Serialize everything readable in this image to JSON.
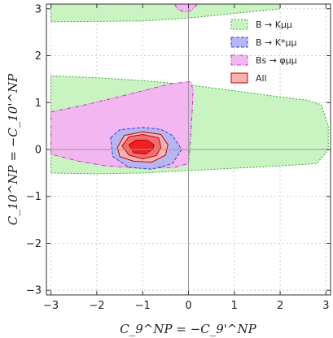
{
  "chart_data": {
    "type": "contour",
    "xlabel": "C_9^NP = −C_9'^NP",
    "ylabel": "C_10^NP = −C_10'^NP",
    "xlim": [
      -3.1,
      3.1
    ],
    "ylim": [
      -3.1,
      3.1
    ],
    "x_ticks": [
      -3,
      -2,
      -1,
      0,
      1,
      2,
      3
    ],
    "y_ticks": [
      -3,
      -2,
      -1,
      0,
      1,
      2,
      3
    ],
    "x_tick_labels": [
      "−3",
      "−2",
      "−1",
      "0",
      "1",
      "2",
      "3"
    ],
    "y_tick_labels": [
      "−3",
      "−2",
      "−1",
      "0",
      "1",
      "2",
      "3"
    ],
    "grid": true,
    "legend_position": "top-right",
    "legend": [
      {
        "key": "bk",
        "label": "B → Kμμ"
      },
      {
        "key": "bkstar",
        "label": "B → K*μμ"
      },
      {
        "key": "bsphi",
        "label": "Bs → φμμ"
      },
      {
        "key": "all",
        "label": "All"
      }
    ],
    "regions": {
      "bk_band_lower": [
        [
          -3.0,
          -0.5
        ],
        [
          -2.0,
          -0.52
        ],
        [
          -1.0,
          -0.5
        ],
        [
          0.0,
          -0.45
        ],
        [
          1.0,
          -0.4
        ],
        [
          2.0,
          -0.35
        ],
        [
          2.8,
          -0.3
        ],
        [
          3.05,
          0.0
        ],
        [
          3.05,
          0.5
        ],
        [
          2.9,
          0.95
        ],
        [
          2.6,
          1.05
        ],
        [
          2.0,
          1.12
        ],
        [
          1.0,
          1.25
        ],
        [
          0.0,
          1.38
        ],
        [
          -1.0,
          1.47
        ],
        [
          -2.0,
          1.53
        ],
        [
          -3.0,
          1.57
        ]
      ],
      "bk_band_upper": [
        [
          -3.0,
          2.72
        ],
        [
          -1.0,
          2.74
        ],
        [
          0.0,
          2.8
        ],
        [
          1.0,
          2.9
        ],
        [
          2.0,
          3.0
        ],
        [
          2.0,
          3.1
        ],
        [
          -3.0,
          3.1
        ]
      ],
      "bsphi_main": [
        [
          -3.0,
          0.8
        ],
        [
          -2.4,
          0.92
        ],
        [
          -1.7,
          1.08
        ],
        [
          -1.0,
          1.25
        ],
        [
          -0.4,
          1.4
        ],
        [
          0.05,
          1.45
        ],
        [
          0.1,
          1.25
        ],
        [
          0.08,
          0.8
        ],
        [
          0.05,
          0.3
        ],
        [
          0.0,
          -0.3
        ],
        [
          -0.3,
          -0.38
        ],
        [
          -1.0,
          -0.4
        ],
        [
          -1.8,
          -0.35
        ],
        [
          -2.4,
          -0.25
        ],
        [
          -3.0,
          -0.1
        ]
      ],
      "bsphi_top": [
        [
          -0.3,
          3.1
        ],
        [
          -0.25,
          3.0
        ],
        [
          -0.1,
          2.93
        ],
        [
          0.05,
          2.96
        ],
        [
          0.2,
          3.1
        ]
      ],
      "bkstar": [
        [
          -1.7,
          0.25
        ],
        [
          -1.5,
          0.42
        ],
        [
          -1.0,
          0.47
        ],
        [
          -0.6,
          0.43
        ],
        [
          -0.35,
          0.3
        ],
        [
          -0.15,
          0.0
        ],
        [
          -0.35,
          -0.3
        ],
        [
          -0.8,
          -0.42
        ],
        [
          -1.3,
          -0.38
        ],
        [
          -1.65,
          -0.15
        ]
      ],
      "all_3sigma": [
        [
          -1.55,
          0.05
        ],
        [
          -1.4,
          0.3
        ],
        [
          -1.0,
          0.38
        ],
        [
          -0.6,
          0.32
        ],
        [
          -0.45,
          0.1
        ],
        [
          -0.5,
          -0.12
        ],
        [
          -0.8,
          -0.27
        ],
        [
          -1.2,
          -0.25
        ],
        [
          -1.5,
          -0.15
        ]
      ],
      "all_2sigma": [
        [
          -1.45,
          0.08
        ],
        [
          -1.3,
          0.27
        ],
        [
          -1.0,
          0.32
        ],
        [
          -0.65,
          0.25
        ],
        [
          -0.6,
          0.05
        ],
        [
          -0.7,
          -0.13
        ],
        [
          -1.0,
          -0.2
        ],
        [
          -1.3,
          -0.12
        ]
      ],
      "all_1sigma": [
        [
          -1.3,
          0.1
        ],
        [
          -1.15,
          0.2
        ],
        [
          -0.9,
          0.2
        ],
        [
          -0.75,
          0.1
        ],
        [
          -0.78,
          0.0
        ],
        [
          -0.95,
          -0.1
        ],
        [
          -1.2,
          -0.07
        ]
      ]
    }
  },
  "colors": {
    "bk_fill": "#c9f3c0",
    "bk_stroke": "#3aa83a",
    "bkstar_fill": "#b6b7f2",
    "bkstar_stroke": "#3b3fd1",
    "bsphi_fill": "#f3b6f0",
    "bsphi_stroke": "#c03cc0",
    "all_3": "#f6b3b3",
    "all_2": "#f07070",
    "all_1": "#ef2020",
    "all_stroke": "#c00000",
    "grid": "#cfcfcf",
    "frame": "#333333",
    "zero_axis": "#999999"
  }
}
